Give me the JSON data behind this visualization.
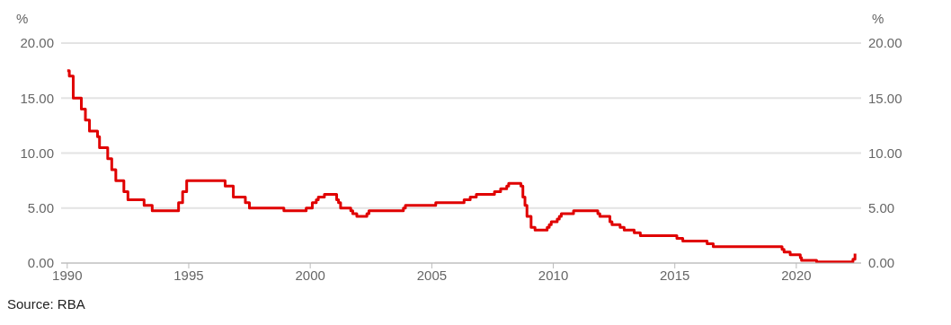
{
  "chart_data": {
    "type": "step",
    "ylabel": "%",
    "y2label": "%",
    "annotations": [
      "Source: RBA"
    ],
    "x": [
      "1990-01",
      "1990-02",
      "1990-04",
      "1990-08",
      "1990-10",
      "1990-12",
      "1991-04",
      "1991-05",
      "1991-09",
      "1991-11",
      "1992-01",
      "1992-05",
      "1992-07",
      "1993-03",
      "1993-07",
      "1994-08",
      "1994-10",
      "1994-12",
      "1996-07",
      "1996-11",
      "1997-05",
      "1997-07",
      "1998-12",
      "1999-11",
      "2000-02",
      "2000-04",
      "2000-05",
      "2000-08",
      "2001-02",
      "2001-03",
      "2001-04",
      "2001-09",
      "2001-10",
      "2001-12",
      "2002-05",
      "2002-06",
      "2003-11",
      "2003-12",
      "2005-03",
      "2006-05",
      "2006-08",
      "2006-11",
      "2007-08",
      "2007-11",
      "2008-02",
      "2008-03",
      "2008-09",
      "2008-10",
      "2008-11",
      "2008-12",
      "2009-02",
      "2009-04",
      "2009-10",
      "2009-11",
      "2009-12",
      "2010-03",
      "2010-04",
      "2010-05",
      "2010-11",
      "2011-11",
      "2011-12",
      "2012-05",
      "2012-06",
      "2012-10",
      "2012-12",
      "2013-05",
      "2013-08",
      "2015-02",
      "2015-05",
      "2016-05",
      "2016-08",
      "2019-06",
      "2019-07",
      "2019-10",
      "2020-03",
      "2020-03-19",
      "2020-11",
      "2022-05",
      "2022-06"
    ],
    "series": [
      {
        "color": "#e00000",
        "values": [
          17.5,
          17.0,
          15.0,
          14.0,
          13.0,
          12.0,
          11.5,
          10.5,
          9.5,
          8.5,
          7.5,
          6.5,
          5.75,
          5.25,
          4.75,
          5.5,
          6.5,
          7.5,
          7.0,
          6.0,
          5.5,
          5.0,
          4.75,
          5.0,
          5.5,
          5.75,
          6.0,
          6.25,
          5.75,
          5.5,
          5.0,
          4.75,
          4.5,
          4.25,
          4.5,
          4.75,
          5.0,
          5.25,
          5.5,
          5.75,
          6.0,
          6.25,
          6.5,
          6.75,
          7.0,
          7.25,
          7.0,
          6.0,
          5.25,
          4.25,
          3.25,
          3.0,
          3.25,
          3.5,
          3.75,
          4.0,
          4.25,
          4.5,
          4.75,
          4.5,
          4.25,
          3.75,
          3.5,
          3.25,
          3.0,
          2.75,
          2.5,
          2.25,
          2.0,
          1.75,
          1.5,
          1.25,
          1.0,
          0.75,
          0.5,
          0.25,
          0.1,
          0.35,
          0.85
        ]
      }
    ],
    "xlim": [
      "1989-10",
      "2022-09"
    ],
    "xticks": [
      "1990",
      "1995",
      "2000",
      "2005",
      "2010",
      "2015",
      "2020"
    ],
    "ylim": [
      0,
      20
    ],
    "yticks": [
      {
        "value": 0,
        "label": "0.00"
      },
      {
        "value": 5,
        "label": "5.00"
      },
      {
        "value": 10,
        "label": "10.00"
      },
      {
        "value": 15,
        "label": "15.00"
      },
      {
        "value": 20,
        "label": "20.00"
      }
    ],
    "y2lim": [
      0,
      20
    ],
    "y2ticks": [
      {
        "value": 0,
        "label": "0.00"
      },
      {
        "value": 5,
        "label": "5.00"
      },
      {
        "value": 10,
        "label": "10.00"
      },
      {
        "value": 15,
        "label": "15.00"
      },
      {
        "value": 20,
        "label": "20.00"
      }
    ],
    "grid": "y",
    "marker": "none",
    "line_style": "solid"
  }
}
